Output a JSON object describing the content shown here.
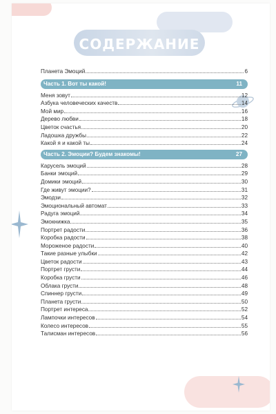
{
  "title": "СОДЕРЖАНИЕ",
  "intro": {
    "title": "Планета Эмоций",
    "page": "6"
  },
  "sections": [
    {
      "title": "Часть 1. Вот ты какой!",
      "page": "11",
      "items": [
        {
          "title": "Меня зовут",
          "page": "12"
        },
        {
          "title": "Азбука человеческих качеств",
          "page": "14"
        },
        {
          "title": "Мой мир",
          "page": "16"
        },
        {
          "title": "Дерево любви",
          "page": "18"
        },
        {
          "title": "Цветок счастья",
          "page": "20"
        },
        {
          "title": "Ладошка дружбы",
          "page": "22"
        },
        {
          "title": "Какой я и какой ты",
          "page": "24"
        }
      ]
    },
    {
      "title": "Часть 2. Эмоции? Будем знакомы!",
      "page": "27",
      "items": [
        {
          "title": "Карусель эмоций",
          "page": "28"
        },
        {
          "title": "Банки эмоций",
          "page": "29"
        },
        {
          "title": "Домики эмоций",
          "page": "30"
        },
        {
          "title": "Где живут эмоции?",
          "page": "31"
        },
        {
          "title": "Эмодзи",
          "page": "32"
        },
        {
          "title": "Эмоциональный автомат",
          "page": "33"
        },
        {
          "title": "Радуга эмоций",
          "page": "34"
        },
        {
          "title": "Эмокнижка",
          "page": "35"
        },
        {
          "title": "Портрет радости",
          "page": "36"
        },
        {
          "title": "Коробка радости",
          "page": "38"
        },
        {
          "title": "Мороженое радости",
          "page": "40"
        },
        {
          "title": "Такие разные улыбки",
          "page": "42"
        },
        {
          "title": "Цветок радости",
          "page": "43"
        },
        {
          "title": "Портрет грусти",
          "page": "44"
        },
        {
          "title": "Коробка грусти",
          "page": "46"
        },
        {
          "title": "Облака грусти",
          "page": "48"
        },
        {
          "title": "Спиннер грусти",
          "page": "49"
        },
        {
          "title": "Планета грусти",
          "page": "50"
        },
        {
          "title": "Портрет интереса",
          "page": "52"
        },
        {
          "title": "Лампочки интересов",
          "page": "54"
        },
        {
          "title": "Колесо интересов",
          "page": "55"
        },
        {
          "title": "Талисман интересов",
          "page": "56"
        }
      ]
    }
  ],
  "colors": {
    "section_bar": "#7fb3c4",
    "title_blob": "#d6e0ec",
    "text": "#333333"
  }
}
